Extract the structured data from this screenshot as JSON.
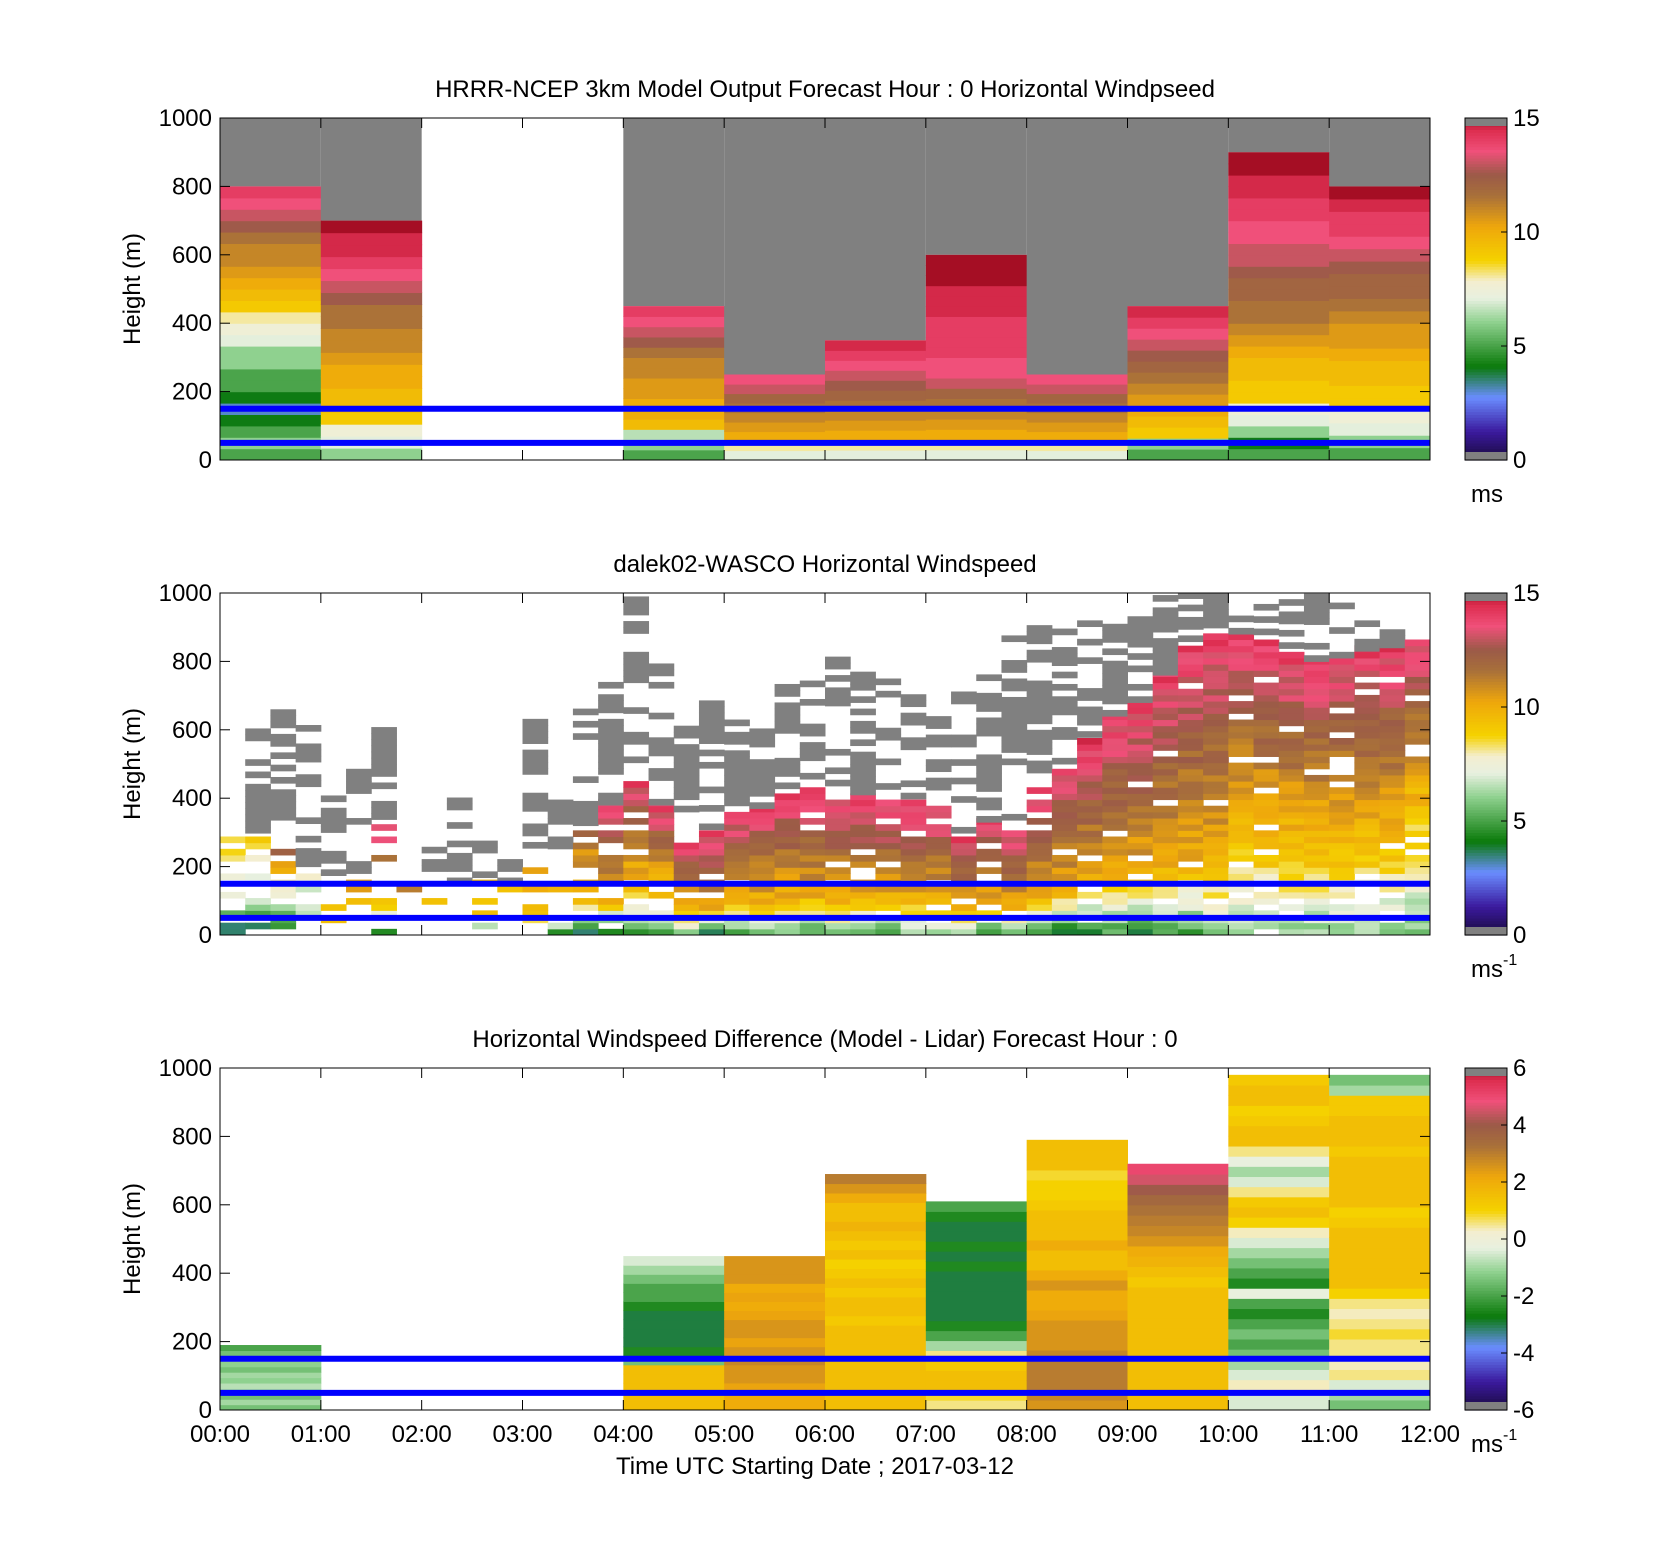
{
  "chart_data": [
    {
      "type": "heatmap",
      "title": "HRRR-NCEP 3km Model Output   Forecast Hour : 0 Horizontal Windpseed",
      "ylabel": "Height (m)",
      "xlabel": "",
      "xlim": [
        0,
        12
      ],
      "ylim": [
        0,
        1000
      ],
      "yticks": [
        "0",
        "200",
        "400",
        "600",
        "800",
        "1000"
      ],
      "xticks": [],
      "colorbar": {
        "min": 0,
        "max": 15,
        "ticks": [
          "0",
          "5",
          "10",
          "15"
        ],
        "unit_label": "ms",
        "unit_exp": "",
        "cmap": "speed"
      },
      "reference_lines_m": [
        50,
        150
      ],
      "cells": [
        {
          "t0": 0,
          "t1": 1,
          "top": 800,
          "values": [
            5,
            6,
            5,
            4,
            3,
            4,
            5,
            5,
            6,
            6,
            7,
            7.5,
            8,
            9,
            9.5,
            10,
            10.5,
            11,
            11,
            11.5,
            12.5,
            13,
            13.5,
            14
          ]
        },
        {
          "t0": 1,
          "t1": 2,
          "top": 700,
          "values": [
            6,
            7,
            7.5,
            9,
            9.5,
            9.5,
            10,
            10,
            10.5,
            11,
            11,
            11.5,
            11.5,
            12.5,
            13,
            13.5,
            14,
            14.5,
            14.5,
            15
          ]
        },
        {
          "t0": 4,
          "t1": 5,
          "top": 450,
          "values": [
            5,
            6,
            6.5,
            9.5,
            10,
            10,
            10.5,
            10.5,
            11,
            11,
            11.5,
            12.5,
            13,
            13.5,
            14
          ]
        },
        {
          "t0": 5,
          "t1": 6,
          "top": 250,
          "values": [
            7,
            8,
            10,
            10.5,
            11,
            11.5,
            12,
            13,
            13.5
          ]
        },
        {
          "t0": 6,
          "t1": 7,
          "top": 350,
          "values": [
            7,
            8,
            10,
            10.5,
            11,
            11.5,
            12,
            12.5,
            13,
            13.5,
            14,
            14.5
          ]
        },
        {
          "t0": 7,
          "t1": 8,
          "top": 600,
          "values": [
            7,
            8,
            10,
            10.5,
            11,
            11.5,
            12,
            13,
            13.5,
            13.5,
            14,
            14,
            14,
            14,
            14.5,
            14.5,
            14.5,
            15,
            15,
            15
          ]
        },
        {
          "t0": 8,
          "t1": 9,
          "top": 250,
          "values": [
            7,
            8,
            10,
            10.5,
            11,
            11.5,
            12,
            13,
            13.5
          ]
        },
        {
          "t0": 9,
          "t1": 10,
          "top": 450,
          "values": [
            5,
            6,
            9,
            9.5,
            10,
            10.5,
            11,
            11.5,
            12,
            12.5,
            13,
            13.5,
            14,
            14.5
          ]
        },
        {
          "t0": 10,
          "t1": 11,
          "top": 900,
          "values": [
            5,
            4,
            6,
            7,
            7.5,
            9,
            9,
            9.5,
            9.5,
            10,
            10.5,
            11,
            11.5,
            11.5,
            12,
            12,
            12.5,
            13,
            13,
            13.5,
            13.5,
            14,
            14,
            14.5,
            14.5,
            15,
            15
          ]
        },
        {
          "t0": 11,
          "t1": 12,
          "top": 800,
          "values": [
            5,
            6,
            7,
            7.5,
            9,
            9,
            9.5,
            9.5,
            10,
            10.5,
            10.5,
            11,
            11.5,
            12,
            12,
            12.5,
            13,
            13.5,
            14,
            14,
            14.5,
            15
          ]
        }
      ]
    },
    {
      "type": "heatmap",
      "title": "dalek02-WASCO  Horizontal Windspeed",
      "ylabel": "Height (m)",
      "xlabel": "",
      "xlim": [
        0,
        12
      ],
      "ylim": [
        0,
        1000
      ],
      "yticks": [
        "0",
        "200",
        "400",
        "600",
        "800",
        "1000"
      ],
      "xticks": [],
      "colorbar": {
        "min": 0,
        "max": 15,
        "ticks": [
          "0",
          "5",
          "10",
          "15"
        ],
        "unit_label": "ms",
        "unit_exp": "-1",
        "cmap": "speed"
      },
      "reference_lines_m": [
        50,
        150
      ],
      "column_width_h": 0.25,
      "columns": [
        {
          "t": 0.0,
          "data_top": 350,
          "sat_top": 360,
          "base": 3,
          "mid": 7,
          "top": 9,
          "fill": 0.55
        },
        {
          "t": 0.25,
          "data_top": 280,
          "sat_top": 620,
          "base": 3,
          "mid": 6,
          "top": 9,
          "fill": 0.5
        },
        {
          "t": 0.5,
          "data_top": 300,
          "sat_top": 650,
          "base": 4,
          "mid": 6,
          "top": 14,
          "fill": 0.45
        },
        {
          "t": 0.75,
          "data_top": 200,
          "sat_top": 600,
          "base": 4,
          "mid": 6,
          "top": 8,
          "fill": 0.3
        },
        {
          "t": 1.0,
          "data_top": 120,
          "sat_top": 400,
          "base": 5,
          "mid": 9,
          "top": 10,
          "fill": 0.35
        },
        {
          "t": 1.25,
          "data_top": 180,
          "sat_top": 470,
          "base": 6,
          "mid": 9,
          "top": 11,
          "fill": 0.35
        },
        {
          "t": 1.5,
          "data_top": 320,
          "sat_top": 640,
          "base": 5,
          "mid": 9,
          "top": 14,
          "fill": 0.3
        },
        {
          "t": 1.75,
          "data_top": 250,
          "sat_top": 310,
          "base": 6,
          "mid": 10,
          "top": 14,
          "fill": 0.35
        },
        {
          "t": 2.0,
          "data_top": 150,
          "sat_top": 250,
          "base": 6,
          "mid": 9,
          "top": 10,
          "fill": 0.3
        },
        {
          "t": 2.25,
          "data_top": 150,
          "sat_top": 400,
          "base": 5,
          "mid": 9,
          "top": 10,
          "fill": 0.3
        },
        {
          "t": 2.5,
          "data_top": 150,
          "sat_top": 280,
          "base": 5,
          "mid": 9,
          "top": 10,
          "fill": 0.3
        },
        {
          "t": 2.75,
          "data_top": 150,
          "sat_top": 230,
          "base": 5,
          "mid": 9,
          "top": 10,
          "fill": 0.3
        },
        {
          "t": 3.0,
          "data_top": 200,
          "sat_top": 630,
          "base": 5,
          "mid": 9,
          "top": 10,
          "fill": 0.45
        },
        {
          "t": 3.25,
          "data_top": 180,
          "sat_top": 380,
          "base": 5,
          "mid": 9,
          "top": 10,
          "fill": 0.45
        },
        {
          "t": 3.5,
          "data_top": 320,
          "sat_top": 700,
          "base": 4,
          "mid": 9,
          "top": 12,
          "fill": 0.6
        },
        {
          "t": 3.75,
          "data_top": 380,
          "sat_top": 740,
          "base": 4,
          "mid": 10,
          "top": 14,
          "fill": 0.7
        },
        {
          "t": 4.0,
          "data_top": 450,
          "sat_top": 980,
          "base": 5,
          "mid": 9,
          "top": 14,
          "fill": 0.8
        },
        {
          "t": 4.25,
          "data_top": 380,
          "sat_top": 780,
          "base": 5,
          "mid": 9,
          "top": 14,
          "fill": 0.85
        },
        {
          "t": 4.5,
          "data_top": 270,
          "sat_top": 650,
          "base": 6,
          "mid": 10,
          "top": 14,
          "fill": 0.9
        },
        {
          "t": 4.75,
          "data_top": 290,
          "sat_top": 680,
          "base": 4,
          "mid": 10,
          "top": 14,
          "fill": 0.9
        },
        {
          "t": 5.0,
          "data_top": 360,
          "sat_top": 700,
          "base": 5,
          "mid": 10,
          "top": 14,
          "fill": 0.9
        },
        {
          "t": 5.25,
          "data_top": 370,
          "sat_top": 680,
          "base": 6,
          "mid": 10,
          "top": 14,
          "fill": 0.9
        },
        {
          "t": 5.5,
          "data_top": 410,
          "sat_top": 720,
          "base": 6,
          "mid": 10,
          "top": 14,
          "fill": 0.9
        },
        {
          "t": 5.75,
          "data_top": 420,
          "sat_top": 750,
          "base": 5,
          "mid": 10,
          "top": 14,
          "fill": 0.9
        },
        {
          "t": 6.0,
          "data_top": 400,
          "sat_top": 800,
          "base": 6,
          "mid": 10,
          "top": 14,
          "fill": 0.9
        },
        {
          "t": 6.25,
          "data_top": 410,
          "sat_top": 760,
          "base": 6,
          "mid": 10,
          "top": 14,
          "fill": 0.9
        },
        {
          "t": 6.5,
          "data_top": 390,
          "sat_top": 760,
          "base": 5,
          "mid": 10,
          "top": 14,
          "fill": 0.9
        },
        {
          "t": 6.75,
          "data_top": 380,
          "sat_top": 720,
          "base": 6,
          "mid": 10,
          "top": 14,
          "fill": 0.9
        },
        {
          "t": 7.0,
          "data_top": 370,
          "sat_top": 650,
          "base": 6,
          "mid": 10,
          "top": 14,
          "fill": 0.9
        },
        {
          "t": 7.25,
          "data_top": 280,
          "sat_top": 700,
          "base": 6,
          "mid": 10,
          "top": 14,
          "fill": 0.9
        },
        {
          "t": 7.5,
          "data_top": 330,
          "sat_top": 780,
          "base": 5,
          "mid": 10,
          "top": 14,
          "fill": 0.9
        },
        {
          "t": 7.75,
          "data_top": 300,
          "sat_top": 870,
          "base": 6,
          "mid": 10,
          "top": 14,
          "fill": 0.9
        },
        {
          "t": 8.0,
          "data_top": 420,
          "sat_top": 930,
          "base": 5,
          "mid": 10,
          "top": 14,
          "fill": 0.9
        },
        {
          "t": 8.25,
          "data_top": 500,
          "sat_top": 900,
          "base": 4,
          "mid": 10,
          "top": 14,
          "fill": 0.9
        },
        {
          "t": 8.5,
          "data_top": 560,
          "sat_top": 950,
          "base": 4,
          "mid": 10,
          "top": 14,
          "fill": 0.9
        },
        {
          "t": 8.75,
          "data_top": 640,
          "sat_top": 900,
          "base": 5,
          "mid": 10,
          "top": 14,
          "fill": 0.9
        },
        {
          "t": 9.0,
          "data_top": 680,
          "sat_top": 920,
          "base": 4,
          "mid": 10,
          "top": 14,
          "fill": 0.9
        },
        {
          "t": 9.25,
          "data_top": 760,
          "sat_top": 990,
          "base": 5,
          "mid": 10,
          "top": 14,
          "fill": 0.9
        },
        {
          "t": 9.5,
          "data_top": 840,
          "sat_top": 990,
          "base": 5,
          "mid": 10,
          "top": 14,
          "fill": 0.9
        },
        {
          "t": 9.75,
          "data_top": 880,
          "sat_top": 990,
          "base": 6,
          "mid": 10,
          "top": 14,
          "fill": 0.9
        },
        {
          "t": 10.0,
          "data_top": 880,
          "sat_top": 990,
          "base": 6,
          "mid": 9,
          "top": 14,
          "fill": 0.9
        },
        {
          "t": 10.25,
          "data_top": 860,
          "sat_top": 990,
          "base": 6,
          "mid": 9,
          "top": 14,
          "fill": 0.9
        },
        {
          "t": 10.5,
          "data_top": 820,
          "sat_top": 990,
          "base": 6,
          "mid": 9,
          "top": 14,
          "fill": 0.9
        },
        {
          "t": 10.75,
          "data_top": 800,
          "sat_top": 990,
          "base": 6,
          "mid": 9,
          "top": 14,
          "fill": 0.9
        },
        {
          "t": 11.0,
          "data_top": 810,
          "sat_top": 990,
          "base": 6,
          "mid": 9,
          "top": 14,
          "fill": 0.9
        },
        {
          "t": 11.25,
          "data_top": 830,
          "sat_top": 920,
          "base": 6,
          "mid": 9,
          "top": 14,
          "fill": 0.9
        },
        {
          "t": 11.5,
          "data_top": 840,
          "sat_top": 880,
          "base": 6,
          "mid": 9,
          "top": 14,
          "fill": 0.9
        },
        {
          "t": 11.75,
          "data_top": 860,
          "sat_top": 860,
          "base": 6,
          "mid": 8,
          "top": 14,
          "fill": 0.9
        }
      ]
    },
    {
      "type": "heatmap",
      "title": "Horizontal Windspeed Difference (Model - Lidar) Forecast Hour : 0",
      "ylabel": "Height (m)",
      "xlabel": "Time UTC  Starting Date ; 2017-03-12",
      "xlim": [
        0,
        12
      ],
      "ylim": [
        0,
        1000
      ],
      "yticks": [
        "0",
        "200",
        "400",
        "600",
        "800",
        "1000"
      ],
      "xticks": [
        "00:00",
        "01:00",
        "02:00",
        "03:00",
        "04:00",
        "05:00",
        "06:00",
        "07:00",
        "08:00",
        "09:00",
        "10:00",
        "11:00",
        "12:00"
      ],
      "colorbar": {
        "min": -6,
        "max": 6,
        "ticks": [
          "-6",
          "-4",
          "-2",
          "0",
          "2",
          "4",
          "6"
        ],
        "unit_label": "ms",
        "unit_exp": "-1",
        "cmap": "diff"
      },
      "reference_lines_m": [
        50,
        150
      ],
      "cells": [
        {
          "t0": 0,
          "t1": 1,
          "top": 190,
          "values": [
            -1.5,
            -1,
            -1.5,
            -1,
            -0.8,
            -1.2,
            -1,
            -1.5,
            -1.2,
            -1,
            -1.5,
            -2
          ]
        },
        {
          "t0": 4,
          "t1": 5,
          "top": 450,
          "values": [
            1.5,
            1.5,
            1.5,
            1.5,
            1.5,
            -1.5,
            -2.5,
            -3,
            -3,
            -3,
            -3,
            -2.5,
            -2,
            -2,
            -1.5,
            -1,
            -0.5
          ]
        },
        {
          "t0": 5,
          "t1": 6,
          "top": 450,
          "values": [
            2,
            2,
            2.2,
            2.5,
            2.5,
            2.8,
            2.5,
            2.2,
            2.5,
            2.5,
            2.2,
            2,
            2.2,
            2,
            2.5,
            2.5,
            2.5
          ]
        },
        {
          "t0": 6,
          "t1": 7,
          "top": 690,
          "values": [
            1.5,
            1.5,
            1.5,
            1.5,
            1.5,
            1.5,
            1.5,
            1.5,
            1.5,
            1.2,
            1.5,
            1.5,
            1.2,
            1.5,
            1.2,
            1,
            1.5,
            1.2,
            1.5,
            1.8,
            1.5,
            1.5,
            2,
            2.5,
            3
          ]
        },
        {
          "t0": 7,
          "t1": 8,
          "top": 610,
          "values": [
            0.5,
            0.8,
            1.5,
            1.5,
            1.2,
            0.5,
            -1,
            -2,
            -2.5,
            -3,
            -3,
            -3,
            -3,
            -3,
            -2.5,
            -3,
            -2.5,
            -3,
            -3,
            -2.5,
            -2
          ]
        },
        {
          "t0": 8,
          "t1": 9,
          "top": 790,
          "values": [
            2.5,
            2.8,
            3,
            3,
            3,
            2.8,
            2.5,
            2.5,
            2.5,
            2.2,
            2,
            2,
            2.5,
            2,
            1.5,
            1.5,
            2,
            1.5,
            1.5,
            1.5,
            1.2,
            1,
            1,
            0.8,
            1.5,
            1.5,
            1.5
          ]
        },
        {
          "t0": 9,
          "t1": 10,
          "top": 720,
          "values": [
            1.5,
            1.5,
            1.5,
            1.5,
            1.5,
            1.5,
            1.5,
            1.5,
            1.5,
            1.5,
            1.5,
            1.5,
            1.2,
            1.5,
            1.8,
            2,
            2.5,
            2.8,
            3,
            3.2,
            3.5,
            4,
            4.5,
            5
          ]
        },
        {
          "t0": 10,
          "t1": 11,
          "top": 980,
          "values": [
            -0.5,
            -0.5,
            0.3,
            -0.5,
            -1,
            -1.5,
            -2,
            -1.5,
            -2,
            -2.5,
            -2,
            -0.3,
            -2.5,
            -2,
            -1.5,
            -1,
            -0.5,
            0.3,
            1,
            1.5,
            1.2,
            0.5,
            -0.5,
            -1,
            -0.3,
            0.5,
            1.5,
            1.5,
            1.2,
            1,
            1.5,
            1.5,
            1.2
          ]
        },
        {
          "t0": 11,
          "t1": 12,
          "top": 980,
          "values": [
            -1.5,
            -1,
            -0.5,
            0.5,
            0.3,
            0.5,
            0.5,
            0.8,
            0.5,
            0.3,
            0.5,
            1,
            1.5,
            1.5,
            1.5,
            1.5,
            1.5,
            1.5,
            1.2,
            1,
            1.5,
            1.5,
            1.5,
            1.5,
            1.5,
            1.2,
            1.5,
            1.5,
            1.5,
            1.2,
            1.2,
            -1,
            -1.5
          ]
        }
      ]
    }
  ]
}
